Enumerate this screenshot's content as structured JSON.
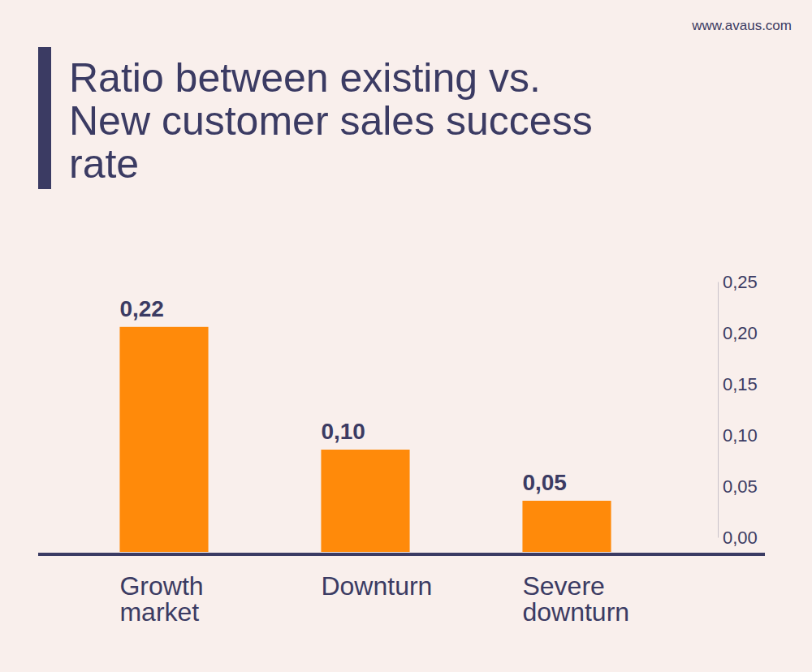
{
  "chart_data": {
    "type": "bar",
    "title": "Ratio between existing vs. New customer sales success rate",
    "source": "www.avaus.com",
    "categories": [
      "Growth market",
      "Downturn",
      "Severe downturn"
    ],
    "values": [
      0.22,
      0.1,
      0.05
    ],
    "value_labels": [
      "0,22",
      "0,10",
      "0,05"
    ],
    "data_labels": true,
    "color": "#ff8a0a",
    "ylim": [
      0,
      0.25
    ],
    "yticks": [
      {
        "value": 0,
        "label": "0,00"
      },
      {
        "value": 0.05,
        "label": "0,05"
      },
      {
        "value": 0.1,
        "label": "0,10"
      },
      {
        "value": 0.15,
        "label": "0,15"
      },
      {
        "value": 0.2,
        "label": "0,20"
      },
      {
        "value": 0.25,
        "label": "0,25"
      }
    ],
    "grid": false
  }
}
